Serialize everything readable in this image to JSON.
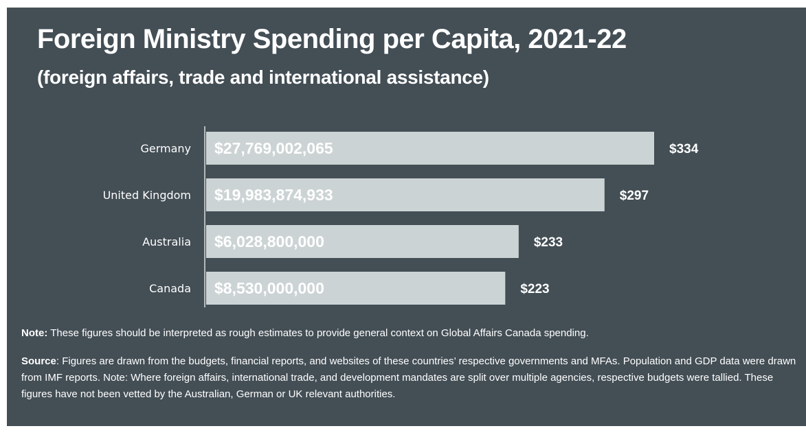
{
  "title": "Foreign Ministry Spending per Capita, 2021-22",
  "subtitle": "(foreign affairs, trade and international assistance)",
  "note": {
    "label": "Note:",
    "text": " These figures should be interpreted as rough estimates to provide general context on Global Affairs Canada spending."
  },
  "source": {
    "label": "Source",
    "text": ": Figures are drawn from the budgets, financial reports, and websites of these countries’ respective governments and MFAs. Population and GDP data were drawn from IMF reports.  Note: Where foreign affairs, international trade, and development mandates are split over multiple agencies, respective budgets were tallied. These figures have not been vetted by the Australian, German or UK relevant authorities."
  },
  "colors": {
    "background": "#434e55",
    "bar": "#ccd3d4",
    "text": "#ffffff"
  },
  "chart_data": {
    "type": "bar",
    "orientation": "horizontal",
    "categories": [
      "Germany",
      "United Kingdom",
      "Australia",
      "Canada"
    ],
    "values": [
      334,
      297,
      233,
      223
    ],
    "value_labels": [
      "$334",
      "$297",
      "$233",
      "$223"
    ],
    "bar_labels": [
      "$27,769,002,065",
      "$19,983,874,933",
      "$6,028,800,000",
      "$8,530,000,000"
    ],
    "xlim": [
      0,
      334
    ],
    "grid": false,
    "legend": "none"
  }
}
